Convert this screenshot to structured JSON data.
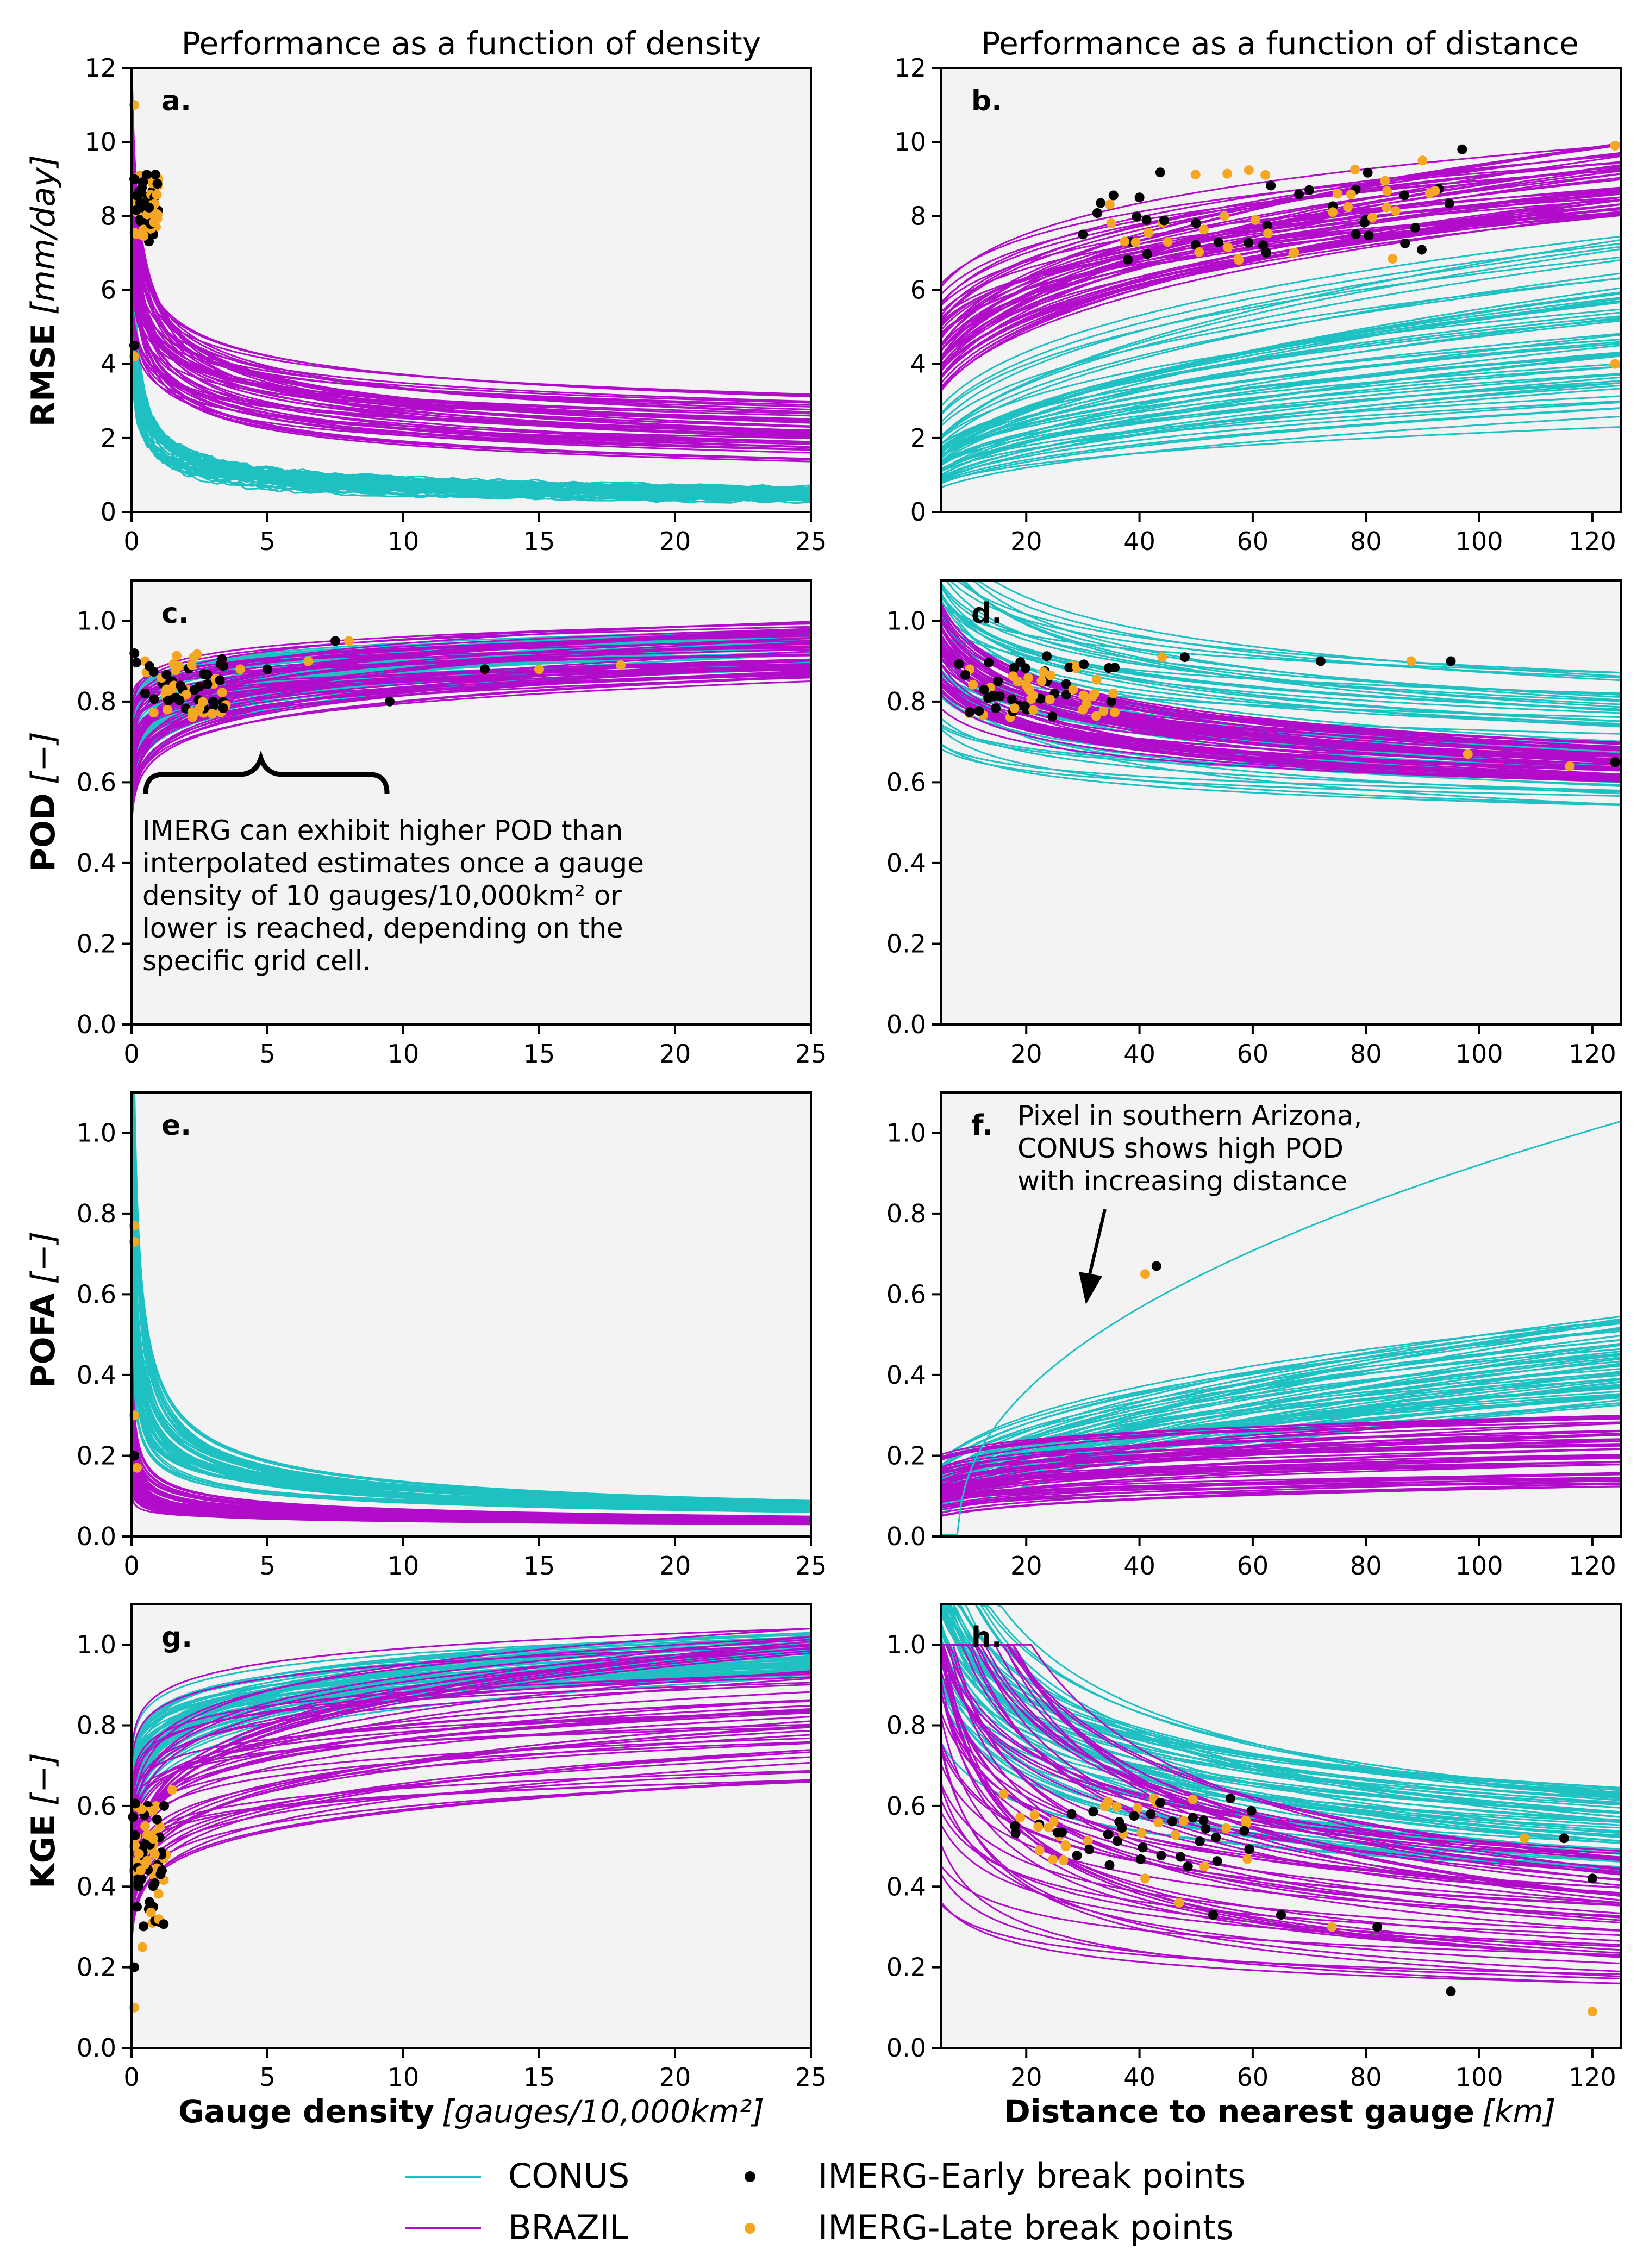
{
  "columns": {
    "left_title": "Performance as a function of density",
    "right_title": "Performance as a function of distance"
  },
  "x_axes": {
    "density": {
      "label_bold": "Gauge density",
      "label_unit": "[gauges/10,000km²]",
      "ticks": [
        "0",
        "5",
        "10",
        "15",
        "20",
        "25"
      ],
      "range": [
        0,
        25
      ]
    },
    "distance": {
      "label_bold": "Distance to nearest gauge",
      "label_unit": "[km]",
      "ticks": [
        "20",
        "40",
        "60",
        "80",
        "100",
        "120"
      ],
      "range": [
        5,
        125
      ]
    }
  },
  "rows": [
    {
      "metric": "RMSE",
      "unit": "[mm/day]",
      "ylim": [
        0,
        12
      ],
      "yticks": [
        "0",
        "2",
        "4",
        "6",
        "8",
        "10",
        "12"
      ]
    },
    {
      "metric": "POD",
      "unit": "[−]",
      "ylim": [
        0,
        1.1
      ],
      "yticks": [
        "0.0",
        "0.2",
        "0.4",
        "0.6",
        "0.8",
        "1.0"
      ]
    },
    {
      "metric": "POFA",
      "unit": "[−]",
      "ylim": [
        0,
        1.1
      ],
      "yticks": [
        "0.0",
        "0.2",
        "0.4",
        "0.6",
        "0.8",
        "1.0"
      ]
    },
    {
      "metric": "KGE",
      "unit": "[−]",
      "ylim": [
        0,
        1.1
      ],
      "yticks": [
        "0.0",
        "0.2",
        "0.4",
        "0.6",
        "0.8",
        "1.0"
      ]
    }
  ],
  "annotations": {
    "c_text": [
      "IMERG can exhibit higher POD than",
      "interpolated estimates once a gauge",
      "density of 10 gauges/10,000km² or",
      "lower is reached, depending on the",
      "specific grid cell."
    ],
    "f_text": [
      "Pixel in southern Arizona,",
      "CONUS shows high POD",
      "with increasing distance"
    ]
  },
  "legend": {
    "conus": "CONUS",
    "brazil": "BRAZIL",
    "early": "IMERG-Early break points",
    "late": "IMERG-Late break points"
  },
  "colors": {
    "conus": "#1fc0c2",
    "brazil": "#b10cc9",
    "early": "#000000",
    "late": "#f5a623",
    "panel_bg": "#f3f3f3"
  },
  "chart_data": [
    {
      "panel": "a.",
      "type": "line",
      "xlabel": "Gauge density",
      "ylabel": "RMSE",
      "xlim": [
        0,
        25
      ],
      "ylim": [
        0,
        12
      ],
      "series": [
        {
          "name": "CONUS",
          "values_at": [
            [
              0.1,
              3.6
            ],
            [
              5,
              1.6
            ],
            [
              25,
              0.8
            ]
          ]
        },
        {
          "name": "BRAZIL",
          "values_at": [
            [
              0.1,
              9.0
            ],
            [
              5,
              4.4
            ],
            [
              25,
              2.4
            ]
          ]
        }
      ],
      "points": {
        "early": [
          [
            0.1,
            9.0
          ],
          [
            0.2,
            8.5
          ],
          [
            0.3,
            7.9
          ],
          [
            0.5,
            8.3
          ],
          [
            0.8,
            7.5
          ],
          [
            0.1,
            4.5
          ]
        ],
        "late": [
          [
            0.1,
            11.0
          ],
          [
            0.2,
            8.1
          ],
          [
            0.3,
            7.5
          ],
          [
            0.5,
            8.0
          ],
          [
            0.9,
            7.7
          ],
          [
            0.1,
            4.2
          ]
        ]
      }
    },
    {
      "panel": "b.",
      "type": "line",
      "xlabel": "Distance to nearest gauge",
      "ylabel": "RMSE",
      "xlim": [
        5,
        125
      ],
      "ylim": [
        0,
        12
      ],
      "series": [
        {
          "name": "CONUS",
          "values_at": [
            [
              20,
              2.5
            ],
            [
              60,
              4.5
            ],
            [
              120,
              5.5
            ]
          ]
        },
        {
          "name": "BRAZIL",
          "values_at": [
            [
              20,
              6.5
            ],
            [
              60,
              8.0
            ],
            [
              120,
              9.0
            ]
          ]
        }
      ],
      "points": {
        "early": [
          [
            30,
            7.5
          ],
          [
            40,
            8.5
          ],
          [
            50,
            7.8
          ],
          [
            70,
            8.7
          ],
          [
            80,
            7.9
          ],
          [
            97,
            9.8
          ]
        ],
        "late": [
          [
            35,
            7.8
          ],
          [
            45,
            7.3
          ],
          [
            55,
            8.0
          ],
          [
            75,
            8.6
          ],
          [
            90,
            9.5
          ],
          [
            124,
            9.9
          ],
          [
            124,
            4.0
          ]
        ]
      }
    },
    {
      "panel": "c.",
      "type": "line",
      "xlabel": "Gauge density",
      "ylabel": "POD",
      "xlim": [
        0,
        25
      ],
      "ylim": [
        0,
        1.1
      ],
      "series": [
        {
          "name": "CONUS",
          "values_at": [
            [
              1,
              0.83
            ],
            [
              10,
              0.9
            ],
            [
              25,
              0.95
            ]
          ]
        },
        {
          "name": "BRAZIL",
          "values_at": [
            [
              1,
              0.82
            ],
            [
              10,
              0.89
            ],
            [
              25,
              0.94
            ]
          ]
        }
      ],
      "points": {
        "early": [
          [
            0.5,
            0.82
          ],
          [
            1.5,
            0.85
          ],
          [
            3,
            0.8
          ],
          [
            5,
            0.88
          ],
          [
            7.5,
            0.95
          ],
          [
            9.5,
            0.8
          ],
          [
            13,
            0.88
          ]
        ],
        "late": [
          [
            0.5,
            0.9
          ],
          [
            2,
            0.83
          ],
          [
            4,
            0.88
          ],
          [
            6.5,
            0.9
          ],
          [
            8,
            0.95
          ],
          [
            15,
            0.88
          ],
          [
            18,
            0.89
          ]
        ]
      }
    },
    {
      "panel": "d.",
      "type": "line",
      "xlabel": "Distance to nearest gauge",
      "ylabel": "POD",
      "xlim": [
        5,
        125
      ],
      "ylim": [
        0,
        1.1
      ],
      "series": [
        {
          "name": "CONUS",
          "values_at": [
            [
              20,
              0.86
            ],
            [
              60,
              0.78
            ],
            [
              120,
              0.72
            ]
          ]
        },
        {
          "name": "BRAZIL",
          "values_at": [
            [
              20,
              0.84
            ],
            [
              60,
              0.74
            ],
            [
              120,
              0.67
            ]
          ]
        }
      ],
      "points": {
        "early": [
          [
            15,
            0.85
          ],
          [
            25,
            0.82
          ],
          [
            35,
            0.8
          ],
          [
            48,
            0.91
          ],
          [
            72,
            0.9
          ],
          [
            95,
            0.9
          ],
          [
            124,
            0.65
          ]
        ],
        "late": [
          [
            10,
            0.88
          ],
          [
            20,
            0.84
          ],
          [
            30,
            0.78
          ],
          [
            44,
            0.91
          ],
          [
            88,
            0.9
          ],
          [
            98,
            0.67
          ],
          [
            116,
            0.64
          ]
        ]
      }
    },
    {
      "panel": "e.",
      "type": "line",
      "xlabel": "Gauge density",
      "ylabel": "POFA",
      "xlim": [
        0,
        25
      ],
      "ylim": [
        0,
        1.1
      ],
      "series": [
        {
          "name": "CONUS",
          "values_at": [
            [
              0.1,
              0.7
            ],
            [
              5,
              0.18
            ],
            [
              25,
              0.07
            ]
          ]
        },
        {
          "name": "BRAZIL",
          "values_at": [
            [
              0.1,
              0.2
            ],
            [
              5,
              0.08
            ],
            [
              25,
              0.04
            ]
          ]
        }
      ],
      "points": {
        "early": [
          [
            0.1,
            0.2
          ]
        ],
        "late": [
          [
            0.1,
            0.77
          ],
          [
            0.1,
            0.73
          ],
          [
            0.1,
            0.3
          ],
          [
            0.2,
            0.17
          ]
        ]
      }
    },
    {
      "panel": "f.",
      "type": "line",
      "xlabel": "Distance to nearest gauge",
      "ylabel": "POFA",
      "xlim": [
        5,
        125
      ],
      "ylim": [
        0,
        1.1
      ],
      "series": [
        {
          "name": "CONUS",
          "values_at": [
            [
              20,
              0.2
            ],
            [
              60,
              0.33
            ],
            [
              120,
              0.42
            ]
          ]
        },
        {
          "name": "BRAZIL",
          "values_at": [
            [
              20,
              0.12
            ],
            [
              60,
              0.16
            ],
            [
              120,
              0.2
            ]
          ]
        }
      ],
      "points": {
        "early": [
          [
            43,
            0.67
          ]
        ],
        "late": [
          [
            41,
            0.65
          ]
        ]
      }
    },
    {
      "panel": "g.",
      "type": "line",
      "xlabel": "Gauge density",
      "ylabel": "KGE",
      "xlim": [
        0,
        25
      ],
      "ylim": [
        0,
        1.1
      ],
      "series": [
        {
          "name": "CONUS",
          "values_at": [
            [
              1,
              0.68
            ],
            [
              10,
              0.9
            ],
            [
              25,
              0.97
            ]
          ]
        },
        {
          "name": "BRAZIL",
          "values_at": [
            [
              1,
              0.62
            ],
            [
              10,
              0.85
            ],
            [
              25,
              0.93
            ]
          ]
        }
      ],
      "points": {
        "early": [
          [
            0.1,
            0.2
          ],
          [
            0.2,
            0.35
          ],
          [
            0.4,
            0.5
          ],
          [
            0.6,
            0.6
          ],
          [
            0.8,
            0.35
          ],
          [
            1.2,
            0.6
          ]
        ],
        "late": [
          [
            0.1,
            0.1
          ],
          [
            0.2,
            0.45
          ],
          [
            0.4,
            0.25
          ],
          [
            0.5,
            0.55
          ],
          [
            0.9,
            0.6
          ],
          [
            1.5,
            0.64
          ]
        ]
      }
    },
    {
      "panel": "h.",
      "type": "line",
      "xlabel": "Distance to nearest gauge",
      "ylabel": "KGE",
      "xlim": [
        5,
        125
      ],
      "ylim": [
        0,
        1.1
      ],
      "series": [
        {
          "name": "CONUS",
          "values_at": [
            [
              20,
              0.78
            ],
            [
              60,
              0.65
            ],
            [
              120,
              0.57
            ]
          ]
        },
        {
          "name": "BRAZIL",
          "values_at": [
            [
              20,
              0.65
            ],
            [
              60,
              0.5
            ],
            [
              120,
              0.42
            ]
          ]
        }
      ],
      "points": {
        "early": [
          [
            18,
            0.55
          ],
          [
            28,
            0.58
          ],
          [
            42,
            0.58
          ],
          [
            53,
            0.33
          ],
          [
            65,
            0.33
          ],
          [
            82,
            0.3
          ],
          [
            95,
            0.14
          ],
          [
            115,
            0.52
          ],
          [
            120,
            0.42
          ]
        ],
        "late": [
          [
            16,
            0.63
          ],
          [
            27,
            0.5
          ],
          [
            41,
            0.42
          ],
          [
            47,
            0.36
          ],
          [
            74,
            0.3
          ],
          [
            108,
            0.52
          ],
          [
            120,
            0.09
          ]
        ]
      }
    }
  ]
}
